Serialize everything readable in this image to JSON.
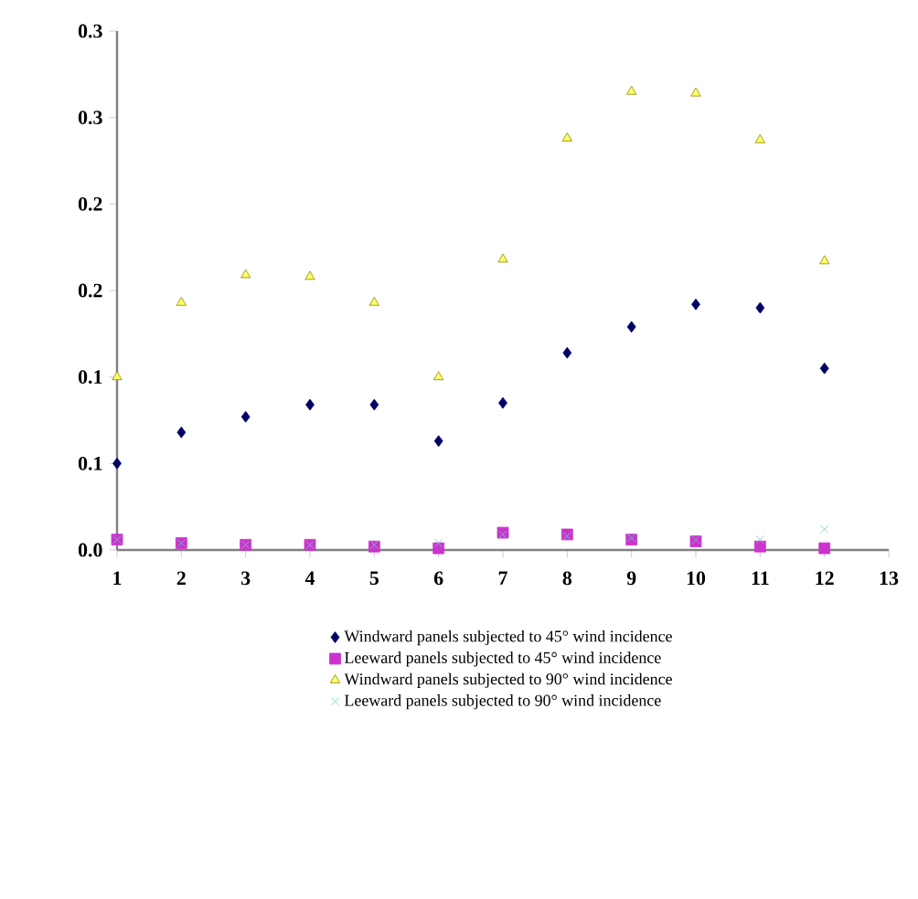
{
  "chart_data": {
    "type": "scatter",
    "x": [
      1,
      2,
      3,
      4,
      5,
      6,
      7,
      8,
      9,
      10,
      11,
      12
    ],
    "xlim": [
      1,
      13
    ],
    "xticks": [
      1,
      2,
      3,
      4,
      5,
      6,
      7,
      8,
      9,
      10,
      11,
      12,
      13
    ],
    "ylim": [
      0,
      0.3
    ],
    "yticks": [
      {
        "value": 0,
        "label": "0.0"
      },
      {
        "value": 0.05,
        "label": "0.1"
      },
      {
        "value": 0.1,
        "label": "0.1"
      },
      {
        "value": 0.15,
        "label": "0.2"
      },
      {
        "value": 0.2,
        "label": "0.2"
      },
      {
        "value": 0.25,
        "label": "0.3"
      },
      {
        "value": 0.3,
        "label": "0.3"
      }
    ],
    "grid": false,
    "legend": "bottom",
    "series": [
      {
        "name": "Windward panels subjected to 45° wind incidence",
        "color": "#000066",
        "marker": "diamond",
        "values": [
          0.05,
          0.068,
          0.077,
          0.084,
          0.084,
          0.063,
          0.085,
          0.114,
          0.129,
          0.142,
          0.14,
          0.105
        ]
      },
      {
        "name": "Leeward panels subjected to 45° wind incidence",
        "color": "#cc33cc",
        "marker": "square",
        "values": [
          0.006,
          0.004,
          0.003,
          0.003,
          0.002,
          0.001,
          0.01,
          0.009,
          0.006,
          0.005,
          0.002,
          0.001
        ]
      },
      {
        "name": "Windward panels subjected to 90° wind incidence",
        "color": "#ffff66",
        "marker": "triangle",
        "values": [
          0.1,
          0.143,
          0.159,
          0.158,
          0.143,
          0.1,
          0.168,
          0.238,
          0.265,
          0.264,
          0.237,
          0.167
        ]
      },
      {
        "name": "Leeward panels subjected to 90° wind incidence",
        "color": "#66cccc",
        "marker": "cross",
        "values": [
          0.006,
          0.004,
          0.003,
          0.003,
          0.003,
          0.004,
          0.009,
          0.008,
          0.007,
          0.006,
          0.006,
          0.012
        ]
      }
    ]
  }
}
